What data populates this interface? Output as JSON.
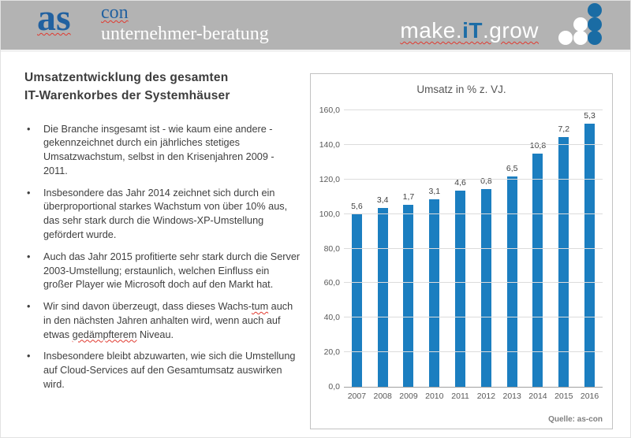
{
  "header": {
    "logo": {
      "as": "as",
      "con": "con",
      "subtitle": "unternehmer-beratung"
    },
    "tagline": {
      "make": "make.",
      "it": "iT",
      "grow": ".grow"
    },
    "colors": {
      "banner_gray": "#b3b3b3",
      "logo_blue": "#2161a0",
      "dot_blue": "#1a6ca4",
      "dot_white": "#ffffff",
      "squiggle_red": "#e0392f"
    },
    "dots": [
      {
        "col": 2,
        "row": 0,
        "color": "blue"
      },
      {
        "col": 1,
        "row": 1,
        "color": "white"
      },
      {
        "col": 2,
        "row": 1,
        "color": "blue"
      },
      {
        "col": 0,
        "row": 2,
        "color": "white"
      },
      {
        "col": 1,
        "row": 2,
        "color": "white"
      },
      {
        "col": 2,
        "row": 2,
        "color": "blue"
      }
    ]
  },
  "slide": {
    "title_line1": "Umsatzentwicklung des gesamten",
    "title_line2": "IT-Warenkorbes der Systemhäuser",
    "bullets": [
      {
        "segments": [
          {
            "text": "Die Branche insgesamt ist - wie kaum eine andere - gekennzeichnet durch ein jährliches stetiges Umsatzwachstum, selbst in den Krisenjahren 2009 - 2011."
          }
        ]
      },
      {
        "segments": [
          {
            "text": "Insbesondere das Jahr 2014 zeichnet sich durch ein überproportional starkes Wachstum von über 10% aus, das sehr stark durch die Windows-XP-Umstellung gefördert wurde."
          }
        ]
      },
      {
        "segments": [
          {
            "text": "Auch das Jahr 2015 profitierte sehr stark durch die Server 2003-Umstellung; erstaunlich, welchen Einfluss ein großer Player wie Microsoft doch auf den Markt hat."
          }
        ]
      },
      {
        "segments": [
          {
            "text": "Wir sind davon überzeugt, dass dieses Wachs-"
          },
          {
            "text": "tum",
            "wavy": true
          },
          {
            "text": " auch in den nächsten Jahren anhalten wird, wenn auch auf etwas "
          },
          {
            "text": "gedämpfterem",
            "wavy": true
          },
          {
            "text": " Niveau."
          }
        ]
      },
      {
        "segments": [
          {
            "text": "Insbesondere bleibt abzuwarten, wie sich die Umstellung auf Cloud-Services auf den Gesamtumsatz auswirken wird."
          }
        ]
      }
    ]
  },
  "chart_data": {
    "type": "bar",
    "title": "Umsatz in % z. VJ.",
    "categories": [
      "2007",
      "2008",
      "2009",
      "2010",
      "2011",
      "2012",
      "2013",
      "2014",
      "2015",
      "2016"
    ],
    "values": [
      100.0,
      103.4,
      105.2,
      108.4,
      113.4,
      114.3,
      121.7,
      134.9,
      144.6,
      152.3
    ],
    "labels": [
      "5,6",
      "3,4",
      "1,7",
      "3,1",
      "4,6",
      "0,8",
      "6,5",
      "10,8",
      "7,2",
      "5,3"
    ],
    "label_meaning": "growth in % vs. previous year, shown above cumulative index bars",
    "ylim": [
      0,
      160
    ],
    "yticks": [
      {
        "value": 0,
        "label": "0,0"
      },
      {
        "value": 20,
        "label": "20,0"
      },
      {
        "value": 40,
        "label": "40,0"
      },
      {
        "value": 60,
        "label": "60,0"
      },
      {
        "value": 80,
        "label": "80,0"
      },
      {
        "value": 100,
        "label": "100,0"
      },
      {
        "value": 120,
        "label": "120,0"
      },
      {
        "value": 140,
        "label": "140,0"
      },
      {
        "value": 160,
        "label": "160,0"
      }
    ],
    "grid": true,
    "legend": false,
    "bar_color": "#1b7ec0",
    "source": "Quelle: as-con"
  }
}
